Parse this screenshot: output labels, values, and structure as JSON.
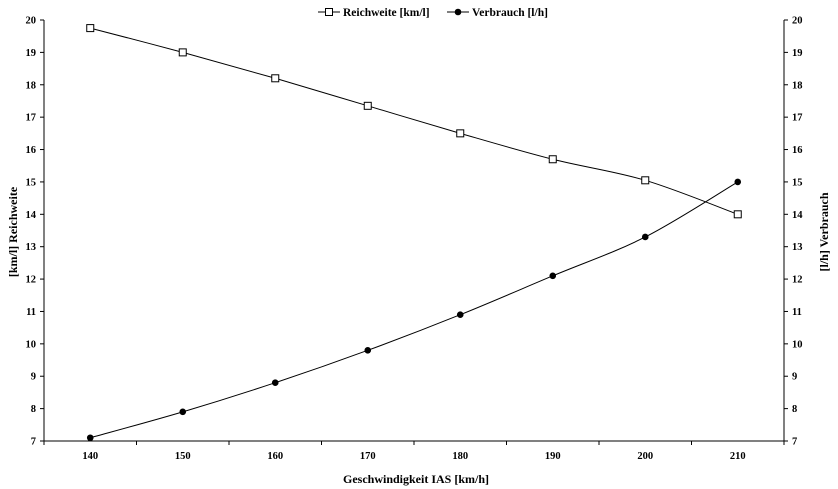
{
  "chart_data": {
    "type": "line",
    "x": [
      140,
      150,
      160,
      170,
      180,
      190,
      200,
      210
    ],
    "xlabel": "Geschwindigkeit IAS [km/h]",
    "ylabel_left": "[km/l] Reichweite",
    "ylabel_right": "[l/h] Verbrauch",
    "xlim": [
      135,
      215
    ],
    "ylim": [
      7,
      20
    ],
    "y2lim": [
      7,
      20
    ],
    "xticks": [
      "140",
      "150",
      "160",
      "170",
      "180",
      "190",
      "200",
      "210"
    ],
    "yticks": [
      "7",
      "8",
      "9",
      "10",
      "11",
      "12",
      "13",
      "14",
      "15",
      "16",
      "17",
      "18",
      "19",
      "20"
    ],
    "legend_position": "top-center",
    "grid": false,
    "series": [
      {
        "name": "Reichweite [km/l]",
        "axis": "left",
        "marker": "open-square",
        "values": [
          19.75,
          19.0,
          18.2,
          17.35,
          16.5,
          15.7,
          15.05,
          14.0
        ]
      },
      {
        "name": "Verbrauch [l/h]",
        "axis": "right",
        "marker": "filled-circle",
        "values": [
          7.1,
          7.9,
          8.8,
          9.8,
          10.9,
          12.1,
          13.3,
          15.0
        ]
      }
    ],
    "colors": {
      "line": "#000000",
      "background": "#ffffff"
    }
  }
}
